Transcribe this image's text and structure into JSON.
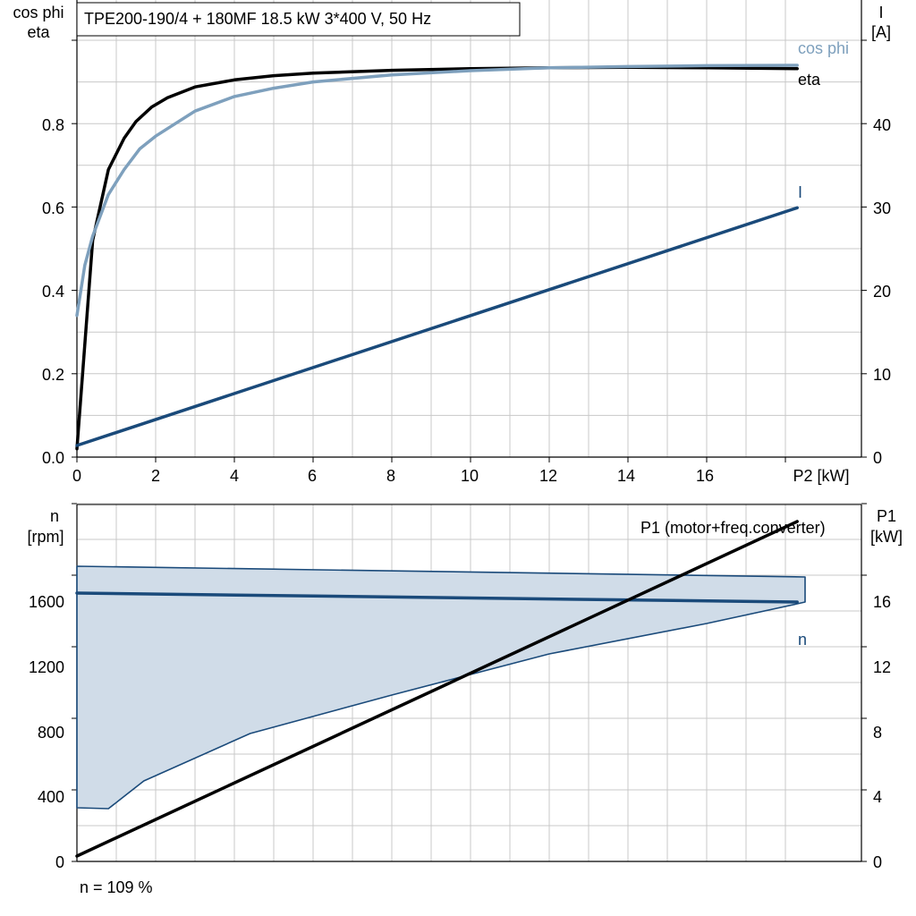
{
  "chart_data": [
    {
      "type": "line",
      "title": "TPE200-190/4 + 180MF   18.5 kW   3*400 V, 50 Hz",
      "xlabel": "P2 [kW]",
      "ylabel_left_line1": "cos phi",
      "ylabel_left_line2": "eta",
      "ylabel_right_line1": "I",
      "ylabel_right_line2": "[A]",
      "xlim": [
        0,
        20
      ],
      "ylim_left": [
        0,
        1.0
      ],
      "ylim_right": [
        0,
        50
      ],
      "grid": true,
      "x_ticks": [
        "0",
        "2",
        "4",
        "6",
        "8",
        "10",
        "12",
        "14",
        "16"
      ],
      "y_left_ticks": [
        "0.0",
        "0.2",
        "0.4",
        "0.6",
        "0.8"
      ],
      "y_right_ticks": [
        "0",
        "10",
        "20",
        "30",
        "40"
      ],
      "series": [
        {
          "name": "eta",
          "axis": "left",
          "color": "#000000",
          "x": [
            0,
            0.4,
            0.8,
            1.2,
            1.5,
            1.9,
            2.3,
            3,
            4,
            5,
            6,
            8,
            10,
            12,
            14,
            16,
            18.3
          ],
          "y": [
            0.02,
            0.52,
            0.69,
            0.765,
            0.805,
            0.84,
            0.862,
            0.888,
            0.905,
            0.915,
            0.921,
            0.928,
            0.932,
            0.934,
            0.935,
            0.934,
            0.932
          ]
        },
        {
          "name": "cos phi",
          "axis": "left",
          "color": "#7ea0bd",
          "x": [
            0,
            0.2,
            0.4,
            0.8,
            1.2,
            1.6,
            2,
            2.5,
            3,
            4,
            5,
            6,
            8,
            10,
            12,
            14,
            16,
            18.3
          ],
          "y": [
            0.34,
            0.46,
            0.53,
            0.63,
            0.69,
            0.74,
            0.77,
            0.8,
            0.83,
            0.865,
            0.885,
            0.9,
            0.917,
            0.927,
            0.934,
            0.937,
            0.939,
            0.94
          ]
        },
        {
          "name": "I",
          "axis": "right",
          "color": "#1a4a7a",
          "x": [
            0,
            18.3
          ],
          "y": [
            1.4,
            29.9
          ]
        }
      ]
    },
    {
      "type": "area",
      "xlim": [
        0,
        20
      ],
      "ylim_left": [
        0,
        2000
      ],
      "ylim_right": [
        0,
        20
      ],
      "ylabel_left_line1": "n",
      "ylabel_left_line2": "[rpm]",
      "ylabel_right_line1": "P1",
      "ylabel_right_line2": "[kW]",
      "y_left_ticks": [
        "0",
        "400",
        "800",
        "1200",
        "1600"
      ],
      "y_right_ticks": [
        "0",
        "4",
        "8",
        "12",
        "16"
      ],
      "grid": true,
      "range_band": {
        "fill": "#d0dce8",
        "upper": {
          "x": [
            0,
            18.5,
            18.5
          ],
          "y": [
            1650,
            1590,
            1450
          ]
        },
        "lower": {
          "x": [
            0,
            0.8,
            1.7,
            4.4,
            8,
            12,
            16,
            18.3
          ],
          "y": [
            300,
            295,
            450,
            715,
            930,
            1160,
            1330,
            1440
          ]
        }
      },
      "series": [
        {
          "name": "n",
          "axis": "left",
          "color": "#1a4a7a",
          "x": [
            0,
            18.3
          ],
          "y": [
            1500,
            1450
          ]
        },
        {
          "name": "P1 (motor+freq.converter)",
          "axis": "right",
          "color": "#000000",
          "x": [
            0,
            18.3
          ],
          "y": [
            0.3,
            19.0
          ]
        }
      ],
      "footer_note": "n = 109 %"
    }
  ]
}
